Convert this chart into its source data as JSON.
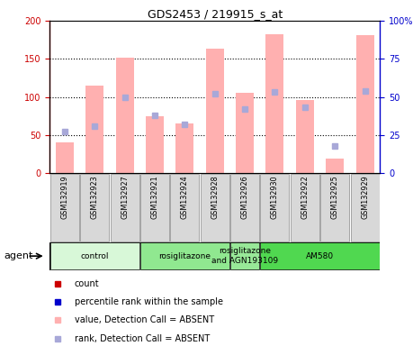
{
  "title": "GDS2453 / 219915_s_at",
  "samples": [
    "GSM132919",
    "GSM132923",
    "GSM132927",
    "GSM132921",
    "GSM132924",
    "GSM132928",
    "GSM132926",
    "GSM132930",
    "GSM132922",
    "GSM132925",
    "GSM132929"
  ],
  "bar_values": [
    40,
    115,
    152,
    75,
    65,
    163,
    105,
    182,
    96,
    19,
    181
  ],
  "rank_values": [
    27,
    31,
    50,
    38,
    32,
    52,
    42,
    53,
    43,
    18,
    54
  ],
  "left_ylim": [
    0,
    200
  ],
  "right_ylim": [
    0,
    100
  ],
  "left_yticks": [
    0,
    50,
    100,
    150,
    200
  ],
  "right_yticks": [
    0,
    25,
    50,
    75,
    100
  ],
  "left_yticklabels": [
    "0",
    "50",
    "100",
    "150",
    "200"
  ],
  "right_yticklabels": [
    "0",
    "25",
    "50",
    "75",
    "100%"
  ],
  "bar_color": "#ffb0b0",
  "rank_color": "#a8a8d8",
  "groups": [
    {
      "label": "control",
      "start": 0,
      "end": 3,
      "color": "#d8f8d8"
    },
    {
      "label": "rosiglitazone",
      "start": 3,
      "end": 6,
      "color": "#90e890"
    },
    {
      "label": "rosiglitazone\nand AGN193109",
      "start": 6,
      "end": 7,
      "color": "#98e898"
    },
    {
      "label": "AM580",
      "start": 7,
      "end": 11,
      "color": "#50d850"
    }
  ],
  "agent_label": "agent",
  "legend_items": [
    {
      "color": "#cc0000",
      "label": "count"
    },
    {
      "color": "#0000cc",
      "label": "percentile rank within the sample"
    },
    {
      "color": "#ffb0b0",
      "label": "value, Detection Call = ABSENT"
    },
    {
      "color": "#a8a8d8",
      "label": "rank, Detection Call = ABSENT"
    }
  ],
  "left_tick_color": "#cc0000",
  "right_tick_color": "#0000cc",
  "cell_color": "#d8d8d8",
  "cell_border_color": "#888888"
}
